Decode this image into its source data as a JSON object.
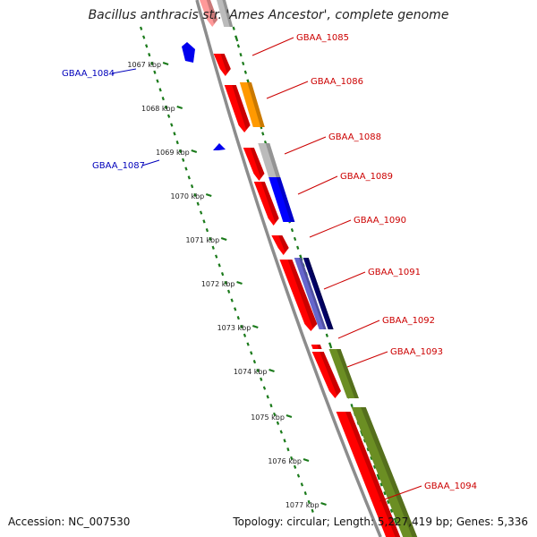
{
  "title": "Bacillus anthracis str. 'Ames Ancestor', complete genome",
  "accession": "Accession: NC_007530",
  "summary": "Topology: circular; Length: 5,227,419 bp; Genes: 5,336",
  "colors": {
    "backbone": "#8c8c8c",
    "tick": "#1a7a1a",
    "forward_label": "#cc0000",
    "reverse_label": "#0000bb"
  },
  "kbp_labels": [
    "1067 kbp",
    "1068 kbp",
    "1069 kbp",
    "1070 kbp",
    "1071 kbp",
    "1072 kbp",
    "1073 kbp",
    "1074 kbp",
    "1075 kbp",
    "1076 kbp",
    "1077 kbp"
  ],
  "gene_labels": [
    {
      "text": "GBAA_1084",
      "strand": "reverse"
    },
    {
      "text": "GBAA_1085",
      "strand": "forward"
    },
    {
      "text": "GBAA_1086",
      "strand": "forward"
    },
    {
      "text": "GBAA_1087",
      "strand": "reverse"
    },
    {
      "text": "GBAA_1088",
      "strand": "forward"
    },
    {
      "text": "GBAA_1089",
      "strand": "forward"
    },
    {
      "text": "GBAA_1090",
      "strand": "forward"
    },
    {
      "text": "GBAA_1091",
      "strand": "forward"
    },
    {
      "text": "GBAA_1092",
      "strand": "forward"
    },
    {
      "text": "GBAA_1093",
      "strand": "forward"
    },
    {
      "text": "GBAA_1094",
      "strand": "forward"
    }
  ]
}
